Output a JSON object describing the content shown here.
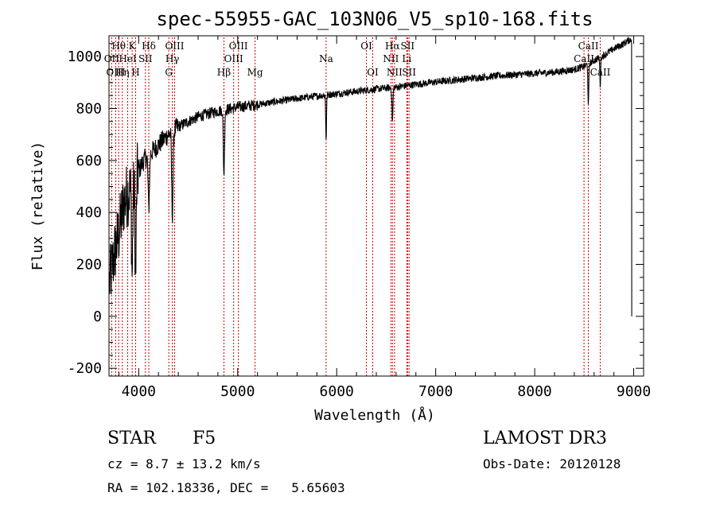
{
  "chart_data": {
    "type": "line",
    "title": "spec-55955-GAC_103N06_V5_sp10-168.fits",
    "xlabel": "Wavelength (Å)",
    "ylabel": "Flux (relative)",
    "xlim": [
      3700,
      9100
    ],
    "ylim": [
      -230,
      1080
    ],
    "xticks": [
      4000,
      5000,
      6000,
      7000,
      8000,
      9000
    ],
    "yticks": [
      -200,
      0,
      200,
      400,
      600,
      800,
      1000
    ],
    "series": [
      {
        "name": "spectrum",
        "continuum": [
          [
            3700,
            120
          ],
          [
            3760,
            250
          ],
          [
            3800,
            320
          ],
          [
            3850,
            440
          ],
          [
            3900,
            480
          ],
          [
            3950,
            500
          ],
          [
            4000,
            560
          ],
          [
            4050,
            600
          ],
          [
            4100,
            620
          ],
          [
            4200,
            660
          ],
          [
            4300,
            700
          ],
          [
            4400,
            730
          ],
          [
            4500,
            750
          ],
          [
            4600,
            768
          ],
          [
            4700,
            780
          ],
          [
            4800,
            790
          ],
          [
            4900,
            797
          ],
          [
            5000,
            805
          ],
          [
            5200,
            815
          ],
          [
            5400,
            827
          ],
          [
            5600,
            838
          ],
          [
            5800,
            848
          ],
          [
            6000,
            857
          ],
          [
            6200,
            866
          ],
          [
            6400,
            875
          ],
          [
            6600,
            882
          ],
          [
            6800,
            893
          ],
          [
            7000,
            902
          ],
          [
            7200,
            910
          ],
          [
            7400,
            918
          ],
          [
            7600,
            925
          ],
          [
            7800,
            930
          ],
          [
            8000,
            935
          ],
          [
            8200,
            940
          ],
          [
            8400,
            950
          ],
          [
            8500,
            962
          ],
          [
            8600,
            985
          ],
          [
            8700,
            1005
          ],
          [
            8800,
            1030
          ],
          [
            8900,
            1050
          ],
          [
            8960,
            1065
          ]
        ],
        "absorption_features": [
          {
            "center": 3934,
            "depth": 330,
            "width": 6
          },
          {
            "center": 3969,
            "depth": 380,
            "width": 6
          },
          {
            "center": 4102,
            "depth": 200,
            "width": 7
          },
          {
            "center": 4340,
            "depth": 320,
            "width": 7
          },
          {
            "center": 4861,
            "depth": 250,
            "width": 6
          },
          {
            "center": 5893,
            "depth": 170,
            "width": 4
          },
          {
            "center": 6563,
            "depth": 130,
            "width": 5
          },
          {
            "center": 8542,
            "depth": 170,
            "width": 4
          },
          {
            "center": 8662,
            "depth": 110,
            "width": 4
          }
        ],
        "end_drop": {
          "at": 8980,
          "value": 0
        }
      }
    ],
    "spectral_lines": [
      {
        "label": "Hθ",
        "wavelength": 3798,
        "row": 1
      },
      {
        "label": "OII",
        "wavelength": 3727,
        "row": 2
      },
      {
        "label": "OIII",
        "wavelength": 3768,
        "row": 3
      },
      {
        "label": "K",
        "wavelength": 3934,
        "row": 1
      },
      {
        "label": "HeI",
        "wavelength": 3889,
        "row": 2
      },
      {
        "label": "Hη",
        "wavelength": 3835,
        "row": 3
      },
      {
        "label": "SII",
        "wavelength": 4068,
        "row": 2
      },
      {
        "label": "H",
        "wavelength": 3969,
        "row": 3
      },
      {
        "label": "Hδ",
        "wavelength": 4102,
        "row": 1
      },
      {
        "label": "OIII",
        "wavelength": 4363,
        "row": 1
      },
      {
        "label": "Hγ",
        "wavelength": 4340,
        "row": 2
      },
      {
        "label": "G",
        "wavelength": 4304,
        "row": 3
      },
      {
        "label": "OIII",
        "wavelength": 5007,
        "row": 1
      },
      {
        "label": "OIII",
        "wavelength": 4959,
        "row": 2
      },
      {
        "label": "Hβ",
        "wavelength": 4861,
        "row": 3
      },
      {
        "label": "Mg",
        "wavelength": 5175,
        "row": 3
      },
      {
        "label": "Na",
        "wavelength": 5893,
        "row": 2
      },
      {
        "label": "OI",
        "wavelength": 6300,
        "row": 1
      },
      {
        "label": "OI",
        "wavelength": 6364,
        "row": 3
      },
      {
        "label": "Hα",
        "wavelength": 6563,
        "row": 1
      },
      {
        "label": "SII",
        "wavelength": 6716,
        "row": 1
      },
      {
        "label": "NII",
        "wavelength": 6548,
        "row": 2
      },
      {
        "label": "Li",
        "wavelength": 6708,
        "row": 2
      },
      {
        "label": "NII",
        "wavelength": 6584,
        "row": 3
      },
      {
        "label": "SII",
        "wavelength": 6731,
        "row": 3
      },
      {
        "label": "CaII",
        "wavelength": 8542,
        "row": 1
      },
      {
        "label": "CaII",
        "wavelength": 8498,
        "row": 2
      },
      {
        "label": "CaII",
        "wavelength": 8662,
        "row": 3
      }
    ],
    "line_color": "#cc0000",
    "spectrum_color": "#000000"
  },
  "info": {
    "object_class": "STAR",
    "subclass": "F5",
    "survey": "LAMOST DR3",
    "redshift": "cz = 8.7 ± 13.2 km/s",
    "obs_date": "Obs-Date: 20120128",
    "coords": "RA = 102.18336, DEC =   5.65603"
  }
}
